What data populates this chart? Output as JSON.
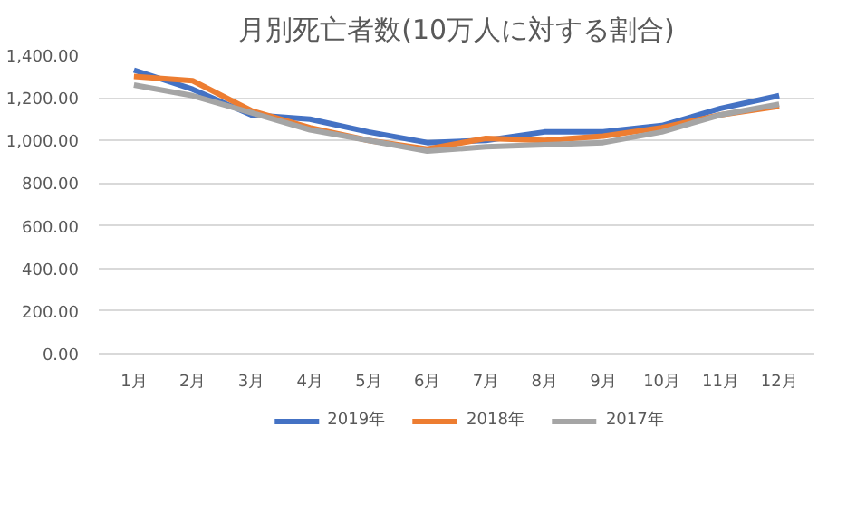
{
  "chart_data": {
    "type": "line",
    "title": "月別死亡者数(10万人に対する割合)",
    "categories": [
      "1月",
      "2月",
      "3月",
      "4月",
      "5月",
      "6月",
      "7月",
      "8月",
      "9月",
      "10月",
      "11月",
      "12月"
    ],
    "series": [
      {
        "name": "2019年",
        "color": "#4472c4",
        "values": [
          1330,
          1240,
          1120,
          1100,
          1040,
          990,
          1000,
          1040,
          1040,
          1070,
          1150,
          1210
        ]
      },
      {
        "name": "2018年",
        "color": "#ed7d31",
        "values": [
          1300,
          1280,
          1140,
          1060,
          1000,
          960,
          1010,
          1000,
          1020,
          1060,
          1120,
          1160
        ]
      },
      {
        "name": "2017年",
        "color": "#a5a5a5",
        "values": [
          1260,
          1210,
          1130,
          1050,
          1000,
          950,
          970,
          980,
          990,
          1040,
          1120,
          1170
        ]
      }
    ],
    "ylim": [
      0,
      1400
    ],
    "yticks": [
      {
        "value": 0,
        "label": "0.00"
      },
      {
        "value": 200,
        "label": "200.00"
      },
      {
        "value": 400,
        "label": "400.00"
      },
      {
        "value": 600,
        "label": "600.00"
      },
      {
        "value": 800,
        "label": "800.00"
      },
      {
        "value": 1000,
        "label": "1,000.00"
      },
      {
        "value": 1200,
        "label": "1,200.00"
      },
      {
        "value": 1400,
        "label": "1,400.00"
      }
    ],
    "grid": "y",
    "legend": "bottom",
    "marker": "none",
    "line_style": "solid"
  }
}
